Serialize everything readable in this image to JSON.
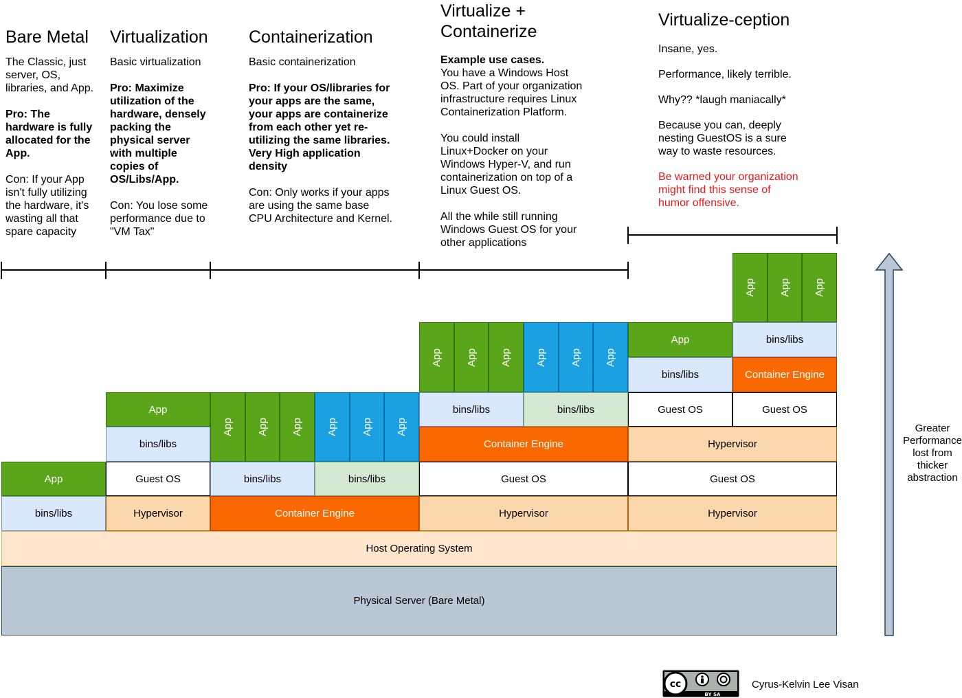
{
  "columns": {
    "bare_metal": {
      "title": "Bare Metal",
      "desc": "The Classic, just\nserver, OS,\nlibraries, and App.",
      "pro": "Pro: The\nhardware is fully\nallocated for the\nApp.",
      "con": "Con: If your App\nisn't fully utilizing\nthe hardware, it's\nwasting all that\nspare capacity"
    },
    "virtualization": {
      "title": "Virtualization",
      "desc": "Basic virtualization",
      "pro": "Pro: Maximize\nutilization of the\nhardware, densely\npacking the\nphysical server\nwith multiple\ncopies of\nOS/Libs/App.",
      "con": "Con: You lose some\nperformance due to\n\"VM Tax\""
    },
    "containerization": {
      "title": "Containerization",
      "desc": "Basic containerization",
      "pro": "Pro: If your OS/libraries for\nyour apps are the same,\nyour apps are containerize\nfrom each other yet re-\nutilizing the same libraries.\nVery High application\ndensity",
      "con": "Con: Only works if your apps\nare using the same base\nCPU Architecture and Kernel."
    },
    "virt_container": {
      "title": "Virtualize +\nContainerize",
      "heading": "Example use cases.",
      "p1": "You have a Windows Host\nOS. Part of your organization\ninfrastructure requires Linux\nContainerization Platform.",
      "p2": "You could install\nLinux+Docker on your\nWindows Hyper-V, and run\ncontainerization on top of a\nLinux Guest OS.",
      "p3": "All the while still running\nWindows Guest OS for your\nother applications"
    },
    "virtualizeception": {
      "title": "Virtualize-ception",
      "p1": "Insane, yes.",
      "p2": "Performance, likely terrible.",
      "p3": "Why?? *laugh maniacally*",
      "p4": "Because you can, deeply\nnesting GuestOS is a sure\nway to waste resources.",
      "warning": "Be warned your organization\nmight find this sense of\nhumor offensive."
    }
  },
  "labels": {
    "app": "App",
    "bins": "bins/libs",
    "guest_os": "Guest OS",
    "hypervisor": "Hypervisor",
    "container_engine": "Container Engine",
    "host_os": "Host Operating System",
    "physical": "Physical Server (Bare Metal)"
  },
  "colors": {
    "app_green": "#5ba51b",
    "app_blue": "#1ba1e2",
    "bins_blue": "#dae8fc",
    "bins_green": "#d5e8d4",
    "hypervisor": "#fad7ac",
    "container_engine": "#fa6800",
    "host_os": "#ffe6cc",
    "physical": "#bac8d3",
    "arrow": "#bac8d3",
    "warning": "#e5181b"
  },
  "arrow_label": "Greater\nPerformance\nlost from\nthicker\nabstraction",
  "footer": {
    "license_icon": "cc-by-sa-icon",
    "license_text": "BY SA",
    "author": "Cyrus-Kelvin Lee Visan"
  }
}
